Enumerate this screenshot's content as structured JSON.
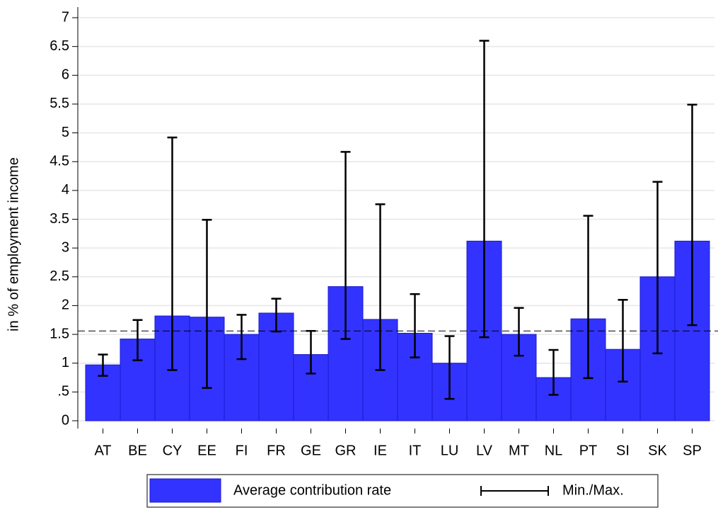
{
  "chart_data": {
    "type": "bar",
    "y_label": "in % of  employment income",
    "categories": [
      "AT",
      "BE",
      "CY",
      "EE",
      "FI",
      "FR",
      "GE",
      "GR",
      "IE",
      "IT",
      "LU",
      "LV",
      "MT",
      "NL",
      "PT",
      "SI",
      "SK",
      "SP"
    ],
    "series": [
      {
        "name": "Average contribution rate",
        "color": "#3333ff",
        "values": [
          0.97,
          1.42,
          1.82,
          1.8,
          1.5,
          1.87,
          1.15,
          2.33,
          1.76,
          1.52,
          1.0,
          3.12,
          1.5,
          0.75,
          1.77,
          1.24,
          2.5,
          3.12
        ]
      },
      {
        "name": "Min./Max.",
        "color": "#000000",
        "min": [
          0.78,
          1.05,
          0.88,
          0.57,
          1.07,
          1.55,
          0.82,
          1.42,
          0.88,
          1.1,
          0.38,
          1.45,
          1.13,
          0.45,
          0.74,
          0.68,
          1.17,
          1.66
        ],
        "max": [
          1.15,
          1.75,
          4.92,
          3.49,
          1.84,
          2.12,
          1.56,
          4.67,
          3.76,
          2.2,
          1.47,
          6.6,
          1.96,
          1.23,
          3.56,
          2.1,
          4.15,
          5.49
        ]
      }
    ],
    "reference_line": 1.56,
    "ylim": [
      0,
      7
    ],
    "yticks": [
      0,
      {
        "value": 0.5,
        "label": ".5"
      },
      1,
      1.5,
      2,
      2.5,
      3,
      3.5,
      4,
      4.5,
      5,
      5.5,
      6,
      6.5,
      7
    ],
    "grid": true
  }
}
